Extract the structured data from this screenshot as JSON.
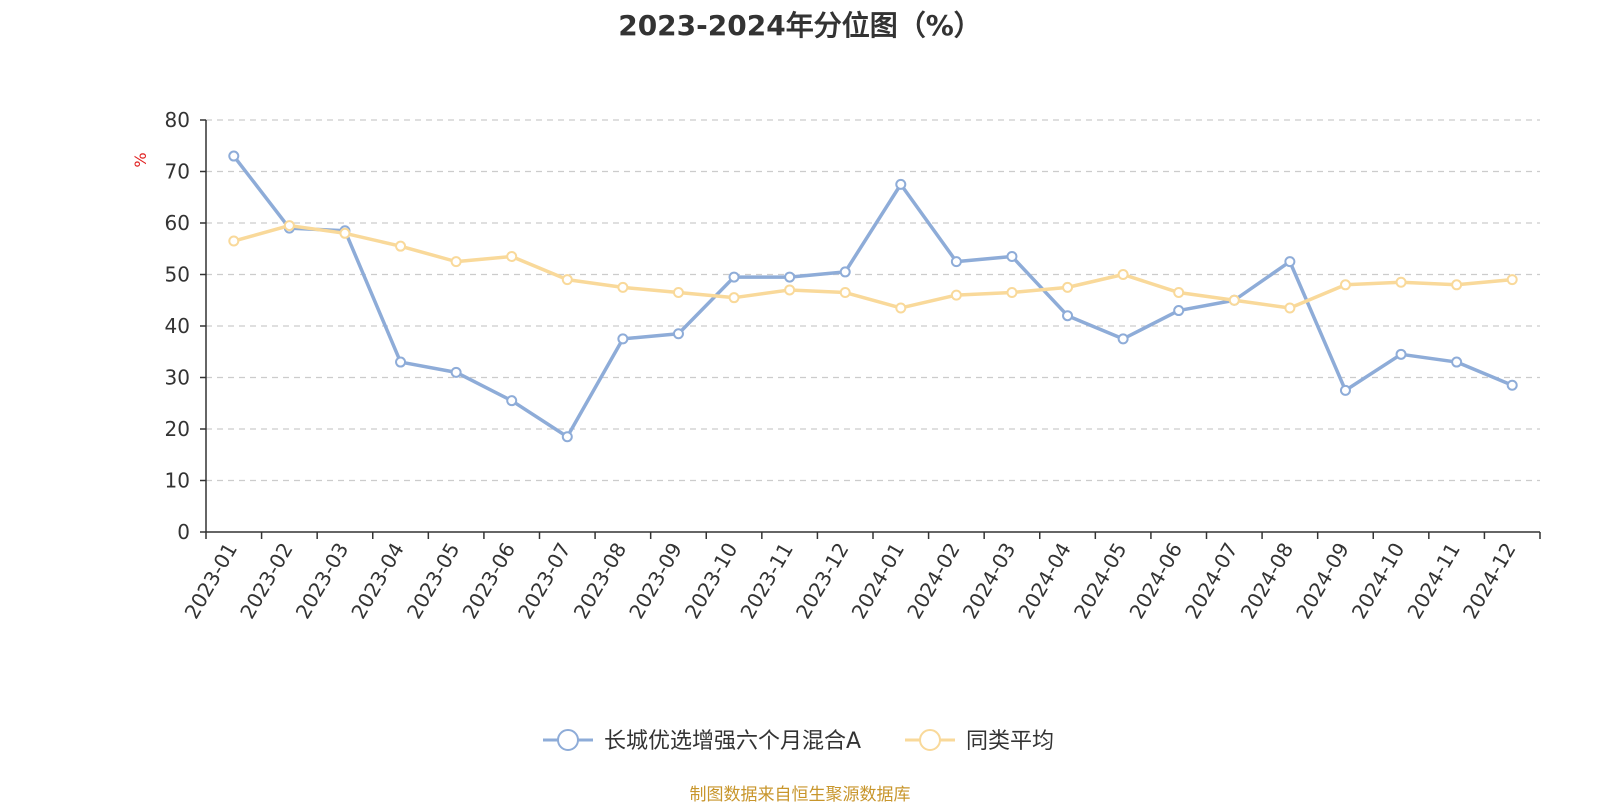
{
  "chart_data": {
    "type": "line",
    "title": "2023-2024年分位图（%）",
    "ylabel": "%",
    "xlabel": "",
    "ylim": [
      0,
      80
    ],
    "yticks": [
      0,
      10,
      20,
      30,
      40,
      50,
      60,
      70,
      80
    ],
    "grid": true,
    "legend_position": "bottom",
    "categories": [
      "2023-01",
      "2023-02",
      "2023-03",
      "2023-04",
      "2023-05",
      "2023-06",
      "2023-07",
      "2023-08",
      "2023-09",
      "2023-10",
      "2023-11",
      "2023-12",
      "2024-01",
      "2024-02",
      "2024-03",
      "2024-04",
      "2024-05",
      "2024-06",
      "2024-07",
      "2024-08",
      "2024-09",
      "2024-10",
      "2024-11",
      "2024-12"
    ],
    "series": [
      {
        "name": "长城优选增强六个月混合A",
        "color": "#8eacd8",
        "values": [
          73.0,
          59.0,
          58.5,
          33.0,
          31.0,
          25.5,
          18.5,
          37.5,
          38.5,
          49.5,
          49.5,
          50.5,
          67.5,
          52.5,
          53.5,
          42.0,
          37.5,
          43.0,
          45.0,
          52.5,
          27.5,
          34.5,
          33.0,
          28.5
        ]
      },
      {
        "name": "同类平均",
        "color": "#f9d99a",
        "values": [
          56.5,
          59.5,
          58.0,
          55.5,
          52.5,
          53.5,
          49.0,
          47.5,
          46.5,
          45.5,
          47.0,
          46.5,
          43.5,
          46.0,
          46.5,
          47.5,
          50.0,
          46.5,
          45.0,
          43.5,
          48.0,
          48.5,
          48.0,
          49.0
        ]
      }
    ]
  },
  "footer": {
    "source": "制图数据来自恒生聚源数据库"
  }
}
